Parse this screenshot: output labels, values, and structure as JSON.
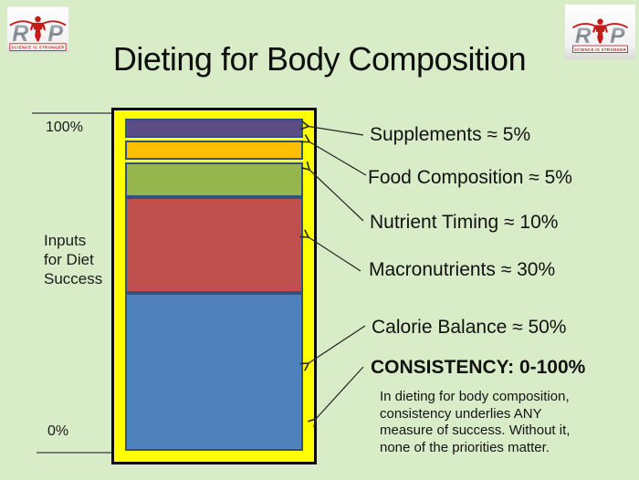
{
  "slide_bg": "#d9ecc8",
  "title": "Dieting for Body Composition",
  "logo": {
    "letter_r": "R",
    "letter_p": "P",
    "tagline": "SCIENCE IS STRONGER",
    "accent_color": "#c41a1a"
  },
  "axis": {
    "top": "100%",
    "bottom": "0%",
    "side_label": "Inputs\nfor Diet\nSuccess"
  },
  "chart_data": {
    "type": "bar",
    "stacked": true,
    "orientation": "vertical-stack",
    "title": "Inputs for Diet Success",
    "ylim": [
      0,
      100
    ],
    "segments": [
      {
        "name": "Supplements",
        "value": 5,
        "color": "#5a4d86",
        "label": "Supplements ≈ 5%"
      },
      {
        "name": "Food Composition",
        "value": 5,
        "color": "#fec000",
        "label": "Food Composition ≈ 5%"
      },
      {
        "name": "Nutrient Timing",
        "value": 10,
        "color": "#94b64d",
        "label": "Nutrient Timing ≈ 10%"
      },
      {
        "name": "Macronutrients",
        "value": 30,
        "color": "#c0504d",
        "label": "Macronutrients ≈ 30%"
      },
      {
        "name": "Calorie Balance",
        "value": 50,
        "color": "#4f81bd",
        "label": "Calorie Balance ≈ 50%"
      }
    ],
    "wrapper": {
      "name": "Consistency",
      "label": "CONSISTENCY: 0-100%",
      "color": "#ffff00",
      "range": [
        0,
        100
      ]
    },
    "segment_border_color": "#31517f",
    "outer_border_color": "#0d0d0d"
  },
  "note": "In dieting for body composition,\nconsistency underlies ANY\nmeasure of success. Without it,\nnone of the priorities matter."
}
